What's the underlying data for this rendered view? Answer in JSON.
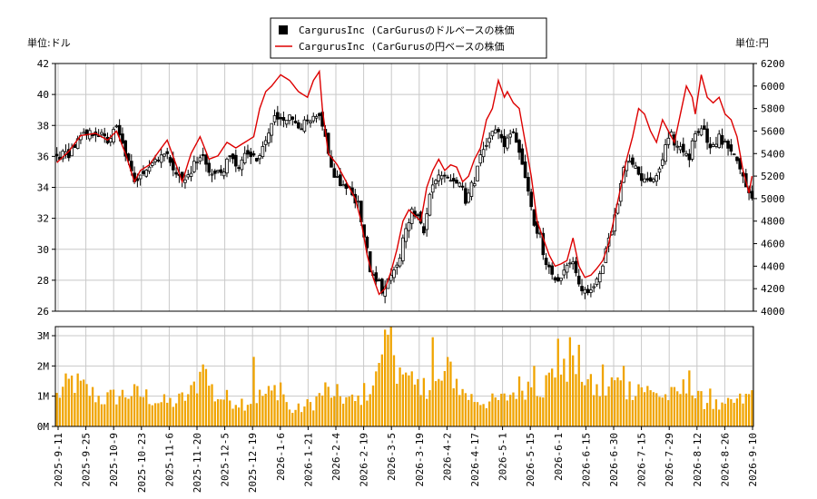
{
  "chart_data": {
    "type": "candlestick+line+bar",
    "legend": {
      "placement": "top-center",
      "entries": [
        {
          "label": "CargurusInc (CarGurusのドルベースの株価",
          "color": "#000000",
          "marker": "square"
        },
        {
          "label": "CargurusInc (CarGurusの円ベースの株価",
          "color": "#dd0000",
          "marker": "line"
        }
      ]
    },
    "left_unit": "単位:ドル",
    "right_unit": "単位:円",
    "price_axis_left": {
      "min": 26,
      "max": 42,
      "ticks": [
        26,
        28,
        30,
        32,
        34,
        36,
        38,
        40,
        42
      ]
    },
    "price_axis_right": {
      "min": 4000,
      "max": 6200,
      "ticks": [
        4000,
        4200,
        4400,
        4600,
        4800,
        5000,
        5200,
        5400,
        5600,
        5800,
        6000,
        6200
      ]
    },
    "volume_axis": {
      "min": 0,
      "max": 3300000,
      "ticks": [
        0,
        1000000,
        2000000,
        3000000
      ],
      "tick_labels": [
        "0M",
        "1M",
        "2M",
        "3M"
      ]
    },
    "x_labels": [
      "2025-9-11",
      "2025-9-25",
      "2025-10-9",
      "2025-10-23",
      "2025-11-6",
      "2025-11-20",
      "2025-12-5",
      "2025-12-19",
      "2026-1-6",
      "2026-1-21",
      "2026-2-4",
      "2026-2-19",
      "2026-3-5",
      "2026-3-19",
      "2026-4-2",
      "2026-4-17",
      "2026-5-1",
      "2026-5-15",
      "2026-6-1",
      "2026-6-15",
      "2026-6-30",
      "2026-7-15",
      "2026-7-29",
      "2026-8-12",
      "2026-8-26",
      "2026-9-10"
    ],
    "close_anchors": [
      [
        0,
        36.0
      ],
      [
        4,
        36.2
      ],
      [
        8,
        37.2
      ],
      [
        13,
        37.6
      ],
      [
        17,
        37.0
      ],
      [
        20,
        37.8
      ],
      [
        23,
        36.2
      ],
      [
        26,
        34.2
      ],
      [
        28,
        35.0
      ],
      [
        31,
        35.4
      ],
      [
        35,
        36.2
      ],
      [
        38,
        35.8
      ],
      [
        41,
        34.6
      ],
      [
        43,
        34.4
      ],
      [
        46,
        35.5
      ],
      [
        49,
        36.0
      ],
      [
        52,
        34.8
      ],
      [
        55,
        35.0
      ],
      [
        58,
        35.8
      ],
      [
        61,
        35.4
      ],
      [
        64,
        36.2
      ],
      [
        67,
        35.6
      ],
      [
        70,
        37.0
      ],
      [
        73,
        38.5
      ],
      [
        76,
        38.6
      ],
      [
        79,
        38.4
      ],
      [
        82,
        38.0
      ],
      [
        85,
        38.2
      ],
      [
        88,
        38.5
      ],
      [
        90,
        37.0
      ],
      [
        92,
        35.2
      ],
      [
        95,
        34.2
      ],
      [
        98,
        33.8
      ],
      [
        101,
        33.0
      ],
      [
        103,
        31.0
      ],
      [
        105,
        28.6
      ],
      [
        107,
        28.2
      ],
      [
        109,
        27.2
      ],
      [
        111,
        27.8
      ],
      [
        113,
        28.5
      ],
      [
        115,
        29.6
      ],
      [
        117,
        31.6
      ],
      [
        119,
        32.4
      ],
      [
        121,
        32.0
      ],
      [
        123,
        31.2
      ],
      [
        125,
        33.8
      ],
      [
        127,
        34.4
      ],
      [
        129,
        35.0
      ],
      [
        131,
        34.8
      ],
      [
        133,
        34.6
      ],
      [
        135,
        34.4
      ],
      [
        137,
        33.2
      ],
      [
        140,
        34.5
      ],
      [
        142,
        36.0
      ],
      [
        144,
        37.0
      ],
      [
        146,
        37.8
      ],
      [
        148,
        37.4
      ],
      [
        150,
        36.8
      ],
      [
        152,
        37.6
      ],
      [
        154,
        37.2
      ],
      [
        156,
        35.6
      ],
      [
        158,
        33.8
      ],
      [
        160,
        31.8
      ],
      [
        162,
        30.8
      ],
      [
        164,
        29.0
      ],
      [
        166,
        28.2
      ],
      [
        168,
        28.2
      ],
      [
        170,
        28.4
      ],
      [
        172,
        29.2
      ],
      [
        174,
        28.6
      ],
      [
        176,
        27.4
      ],
      [
        178,
        27.2
      ],
      [
        180,
        27.6
      ],
      [
        182,
        28.4
      ],
      [
        184,
        30.0
      ],
      [
        186,
        31.0
      ],
      [
        188,
        33.0
      ],
      [
        190,
        35.5
      ],
      [
        192,
        35.8
      ],
      [
        194,
        35.2
      ],
      [
        196,
        34.5
      ],
      [
        198,
        34.2
      ],
      [
        200,
        34.6
      ],
      [
        202,
        35.0
      ],
      [
        204,
        36.5
      ],
      [
        206,
        37.3
      ],
      [
        208,
        36.6
      ],
      [
        210,
        36.4
      ],
      [
        212,
        36.0
      ],
      [
        214,
        37.6
      ],
      [
        216,
        38.0
      ],
      [
        218,
        37.1
      ],
      [
        220,
        36.6
      ],
      [
        222,
        37.2
      ],
      [
        224,
        36.7
      ],
      [
        226,
        36.5
      ],
      [
        228,
        35.9
      ],
      [
        230,
        34.6
      ],
      [
        232,
        33.5
      ],
      [
        233,
        33.2
      ]
    ],
    "yen_anchors": [
      [
        0,
        5320
      ],
      [
        4,
        5420
      ],
      [
        8,
        5560
      ],
      [
        13,
        5580
      ],
      [
        17,
        5520
      ],
      [
        20,
        5600
      ],
      [
        23,
        5400
      ],
      [
        26,
        5150
      ],
      [
        28,
        5250
      ],
      [
        31,
        5300
      ],
      [
        35,
        5450
      ],
      [
        37,
        5520
      ],
      [
        40,
        5300
      ],
      [
        42,
        5150
      ],
      [
        45,
        5400
      ],
      [
        48,
        5550
      ],
      [
        51,
        5350
      ],
      [
        54,
        5380
      ],
      [
        57,
        5500
      ],
      [
        60,
        5450
      ],
      [
        63,
        5500
      ],
      [
        66,
        5550
      ],
      [
        68,
        5800
      ],
      [
        70,
        5950
      ],
      [
        72,
        6000
      ],
      [
        75,
        6100
      ],
      [
        78,
        6050
      ],
      [
        81,
        5950
      ],
      [
        84,
        5900
      ],
      [
        86,
        6050
      ],
      [
        88,
        6130
      ],
      [
        89,
        5800
      ],
      [
        91,
        5400
      ],
      [
        94,
        5300
      ],
      [
        97,
        5150
      ],
      [
        100,
        5000
      ],
      [
        102,
        4800
      ],
      [
        104,
        4500
      ],
      [
        106,
        4300
      ],
      [
        108,
        4150
      ],
      [
        110,
        4200
      ],
      [
        112,
        4350
      ],
      [
        114,
        4550
      ],
      [
        116,
        4800
      ],
      [
        118,
        4900
      ],
      [
        120,
        4850
      ],
      [
        122,
        4800
      ],
      [
        124,
        5100
      ],
      [
        126,
        5250
      ],
      [
        128,
        5350
      ],
      [
        130,
        5250
      ],
      [
        132,
        5300
      ],
      [
        134,
        5280
      ],
      [
        136,
        5150
      ],
      [
        138,
        5200
      ],
      [
        140,
        5350
      ],
      [
        142,
        5450
      ],
      [
        144,
        5700
      ],
      [
        146,
        5800
      ],
      [
        148,
        6050
      ],
      [
        150,
        5900
      ],
      [
        151,
        5950
      ],
      [
        153,
        5850
      ],
      [
        155,
        5800
      ],
      [
        157,
        5500
      ],
      [
        159,
        5200
      ],
      [
        161,
        4800
      ],
      [
        163,
        4650
      ],
      [
        165,
        4500
      ],
      [
        167,
        4400
      ],
      [
        169,
        4420
      ],
      [
        171,
        4450
      ],
      [
        173,
        4650
      ],
      [
        175,
        4400
      ],
      [
        177,
        4300
      ],
      [
        179,
        4320
      ],
      [
        181,
        4380
      ],
      [
        183,
        4450
      ],
      [
        185,
        4600
      ],
      [
        187,
        4850
      ],
      [
        189,
        5100
      ],
      [
        191,
        5350
      ],
      [
        193,
        5550
      ],
      [
        195,
        5800
      ],
      [
        197,
        5750
      ],
      [
        199,
        5600
      ],
      [
        201,
        5500
      ],
      [
        203,
        5700
      ],
      [
        205,
        5600
      ],
      [
        207,
        5500
      ],
      [
        209,
        5750
      ],
      [
        211,
        6000
      ],
      [
        213,
        5900
      ],
      [
        214,
        5750
      ],
      [
        216,
        6100
      ],
      [
        218,
        5900
      ],
      [
        220,
        5850
      ],
      [
        222,
        5900
      ],
      [
        224,
        5750
      ],
      [
        226,
        5700
      ],
      [
        228,
        5550
      ],
      [
        230,
        5250
      ],
      [
        232,
        5050
      ],
      [
        233,
        5200
      ]
    ],
    "volume_anchors": [
      [
        0,
        1.0
      ],
      [
        5,
        1.5
      ],
      [
        10,
        1.2
      ],
      [
        15,
        0.9
      ],
      [
        20,
        1.0
      ],
      [
        25,
        1.1
      ],
      [
        30,
        1.0
      ],
      [
        35,
        0.8
      ],
      [
        40,
        0.8
      ],
      [
        45,
        1.1
      ],
      [
        49,
        1.9
      ],
      [
        53,
        1.0
      ],
      [
        58,
        0.9
      ],
      [
        63,
        0.8
      ],
      [
        68,
        1.0
      ],
      [
        72,
        1.1
      ],
      [
        75,
        1.4
      ],
      [
        78,
        0.5
      ],
      [
        82,
        0.6
      ],
      [
        86,
        0.8
      ],
      [
        90,
        1.2
      ],
      [
        95,
        1.0
      ],
      [
        100,
        0.8
      ],
      [
        104,
        1.2
      ],
      [
        108,
        1.6
      ],
      [
        112,
        2.8
      ],
      [
        116,
        1.5
      ],
      [
        120,
        1.3
      ],
      [
        124,
        1.1
      ],
      [
        128,
        1.4
      ],
      [
        132,
        1.9
      ],
      [
        136,
        1.1
      ],
      [
        140,
        0.9
      ],
      [
        145,
        0.8
      ],
      [
        150,
        0.9
      ],
      [
        155,
        1.3
      ],
      [
        159,
        1.4
      ],
      [
        163,
        1.3
      ],
      [
        167,
        1.8
      ],
      [
        171,
        1.7
      ],
      [
        175,
        2.0
      ],
      [
        179,
        1.3
      ],
      [
        183,
        1.1
      ],
      [
        187,
        1.5
      ],
      [
        191,
        1.2
      ],
      [
        195,
        1.4
      ],
      [
        199,
        1.1
      ],
      [
        203,
        1.0
      ],
      [
        207,
        1.0
      ],
      [
        211,
        1.3
      ],
      [
        215,
        0.9
      ],
      [
        219,
        0.8
      ],
      [
        223,
        0.6
      ],
      [
        227,
        0.8
      ],
      [
        231,
        0.9
      ],
      [
        233,
        1.1
      ]
    ],
    "volume_spikes": [
      [
        49,
        2.05
      ],
      [
        66,
        2.3
      ],
      [
        93,
        1.0
      ],
      [
        108,
        2.1
      ],
      [
        110,
        3.2
      ],
      [
        112,
        3.3
      ],
      [
        115,
        1.95
      ],
      [
        123,
        1.6
      ],
      [
        126,
        2.95
      ],
      [
        137,
        1.1
      ],
      [
        160,
        2.0
      ],
      [
        168,
        2.9
      ],
      [
        172,
        2.95
      ],
      [
        175,
        2.7
      ],
      [
        183,
        2.05
      ],
      [
        190,
        2.0
      ],
      [
        201,
        1.1
      ],
      [
        212,
        1.85
      ],
      [
        219,
        1.25
      ]
    ]
  }
}
